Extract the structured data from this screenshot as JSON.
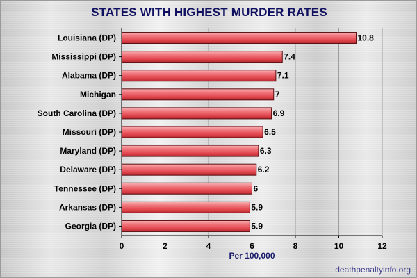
{
  "title": "STATES WITH HIGHEST MURDER RATES",
  "source": "deathpenaltyinfo.org",
  "chart_data": {
    "type": "bar",
    "orientation": "horizontal",
    "categories": [
      "Louisiana (DP)",
      "Mississippi (DP)",
      "Alabama (DP)",
      "Michigan",
      "South Carolina (DP)",
      "Missouri (DP)",
      "Maryland (DP)",
      "Delaware (DP)",
      "Tennessee (DP)",
      "Arkansas (DP)",
      "Georgia (DP)"
    ],
    "values": [
      10.8,
      7.4,
      7.1,
      7,
      6.9,
      6.5,
      6.3,
      6.2,
      6,
      5.9,
      5.9
    ],
    "value_labels": [
      "10.8",
      "7.4",
      "7.1",
      "7",
      "6.9",
      "6.5",
      "6.3",
      "6.2",
      "6",
      "5.9",
      "5.9"
    ],
    "xlabel": "Per 100,000",
    "xlim": [
      0,
      12
    ],
    "xticks": [
      0,
      2,
      4,
      6,
      8,
      10,
      12
    ],
    "grid": true,
    "bar_color": "#e8535a"
  }
}
